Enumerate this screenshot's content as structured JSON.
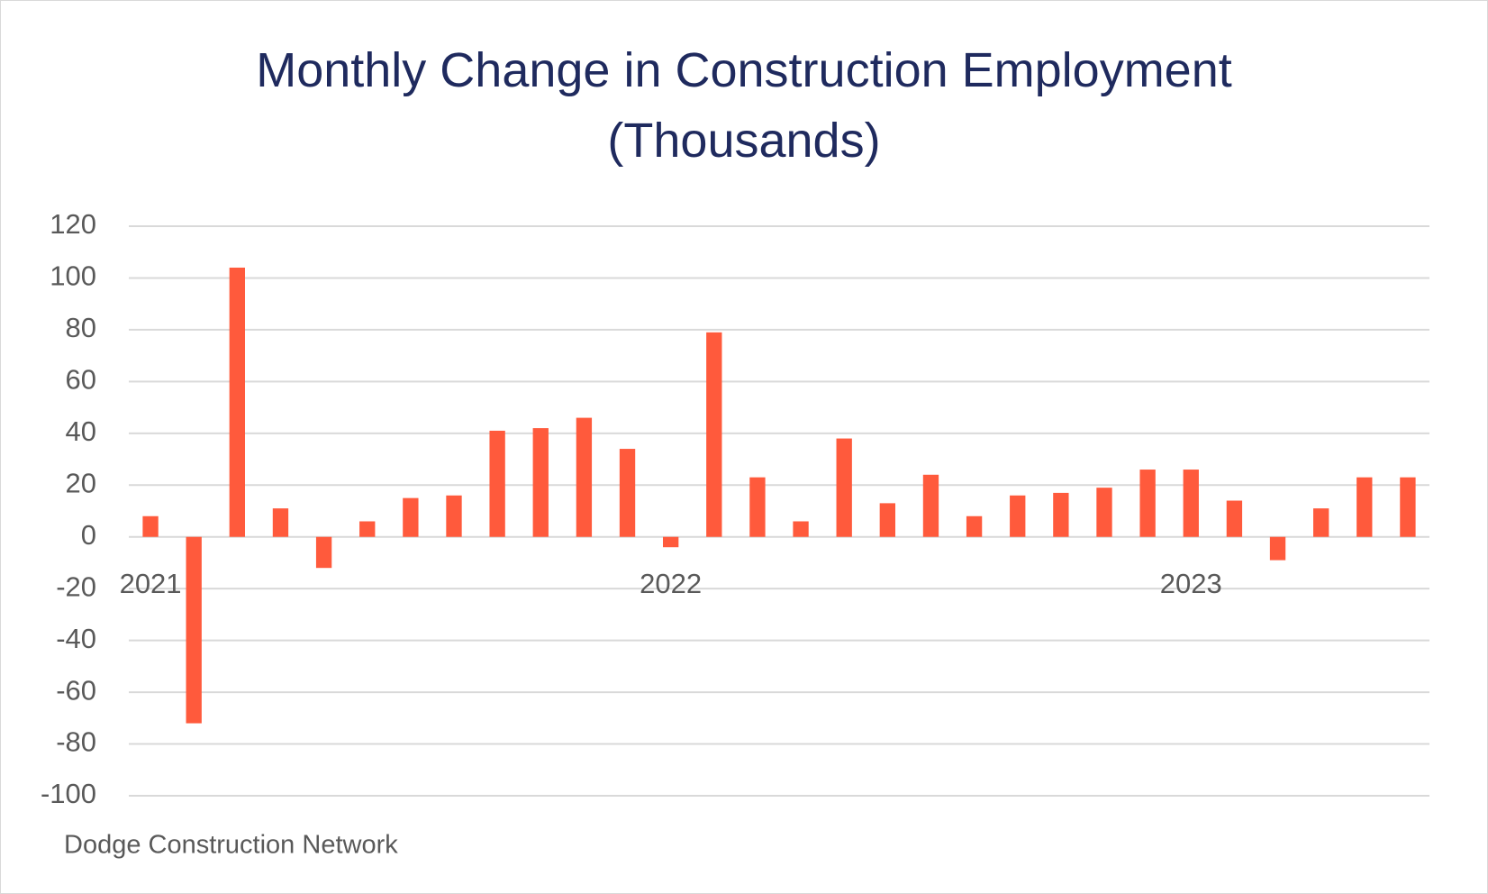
{
  "chart_data": {
    "type": "bar",
    "title": "Monthly Change in Construction Employment (Thousands)",
    "categories": [
      "2021",
      null,
      null,
      null,
      null,
      null,
      null,
      null,
      null,
      null,
      null,
      null,
      "2022",
      null,
      null,
      null,
      null,
      null,
      null,
      null,
      null,
      null,
      null,
      null,
      "2023",
      null,
      null,
      null,
      null,
      null
    ],
    "values": [
      8,
      -72,
      104,
      11,
      -12,
      6,
      15,
      16,
      41,
      42,
      46,
      34,
      -4,
      79,
      23,
      6,
      38,
      13,
      24,
      8,
      16,
      17,
      19,
      26,
      26,
      14,
      -9,
      11,
      23,
      23
    ],
    "color": "#ff5a3c",
    "ylim": [
      -100,
      120
    ],
    "yticks": [
      -100,
      -80,
      -60,
      -40,
      -20,
      0,
      20,
      40,
      60,
      80,
      100,
      120
    ],
    "grid": true,
    "source": "Dodge Construction Network"
  }
}
